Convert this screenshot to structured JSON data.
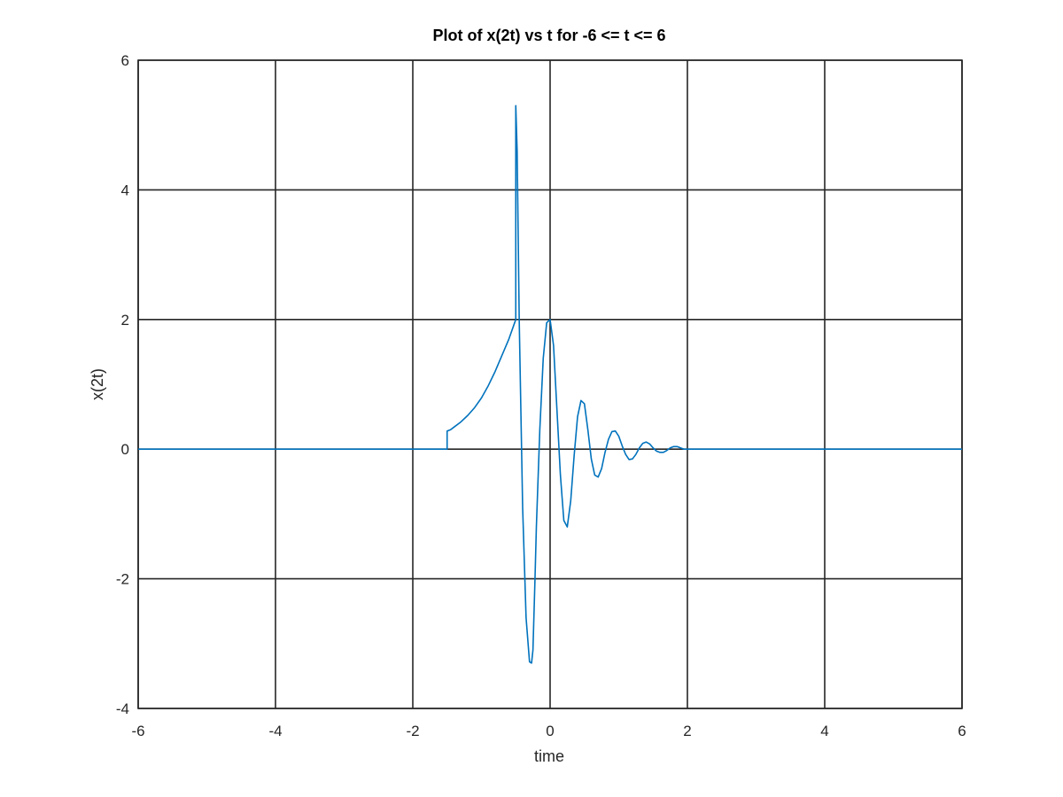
{
  "chart_data": {
    "type": "line",
    "title": "Plot of x(2t) vs t for -6 <= t <= 6",
    "xlabel": "time",
    "ylabel": "x(2t)",
    "xlim": [
      -6,
      6
    ],
    "ylim": [
      -4,
      6
    ],
    "xticks": [
      "-6",
      "-4",
      "-2",
      "0",
      "2",
      "4",
      "6"
    ],
    "yticks": [
      "-4",
      "-2",
      "0",
      "2",
      "4",
      "6"
    ],
    "grid": true,
    "legend": "none",
    "series": [
      {
        "color": "#0072bd",
        "x": [
          -6,
          -1.5,
          -1.5,
          -1.45,
          -1.4,
          -1.3,
          -1.2,
          -1.1,
          -1.0,
          -0.9,
          -0.8,
          -0.7,
          -0.6,
          -0.5,
          -0.5,
          -0.48,
          -0.45,
          -0.4,
          -0.35,
          -0.3,
          -0.27,
          -0.25,
          -0.22,
          -0.2,
          -0.15,
          -0.1,
          -0.05,
          0.0,
          0.05,
          0.1,
          0.15,
          0.2,
          0.25,
          0.3,
          0.35,
          0.4,
          0.45,
          0.5,
          0.55,
          0.6,
          0.65,
          0.7,
          0.75,
          0.8,
          0.85,
          0.9,
          0.95,
          1.0,
          1.05,
          1.1,
          1.15,
          1.2,
          1.25,
          1.3,
          1.35,
          1.4,
          1.45,
          1.5,
          1.55,
          1.6,
          1.65,
          1.7,
          1.75,
          1.8,
          1.85,
          1.9,
          1.95,
          2.0,
          6
        ],
        "y": [
          0,
          0,
          0.28,
          0.3,
          0.34,
          0.42,
          0.52,
          0.64,
          0.79,
          0.98,
          1.2,
          1.45,
          1.7,
          2.0,
          5.3,
          4.6,
          2.0,
          -0.9,
          -2.6,
          -3.28,
          -3.3,
          -3.1,
          -2.0,
          -1.2,
          0.3,
          1.4,
          1.95,
          2.0,
          1.6,
          0.6,
          -0.4,
          -1.1,
          -1.2,
          -0.8,
          -0.1,
          0.5,
          0.75,
          0.7,
          0.3,
          -0.15,
          -0.4,
          -0.43,
          -0.3,
          -0.05,
          0.15,
          0.27,
          0.28,
          0.2,
          0.05,
          -0.08,
          -0.16,
          -0.15,
          -0.08,
          0.02,
          0.09,
          0.11,
          0.08,
          0.02,
          -0.03,
          -0.05,
          -0.05,
          -0.02,
          0.02,
          0.04,
          0.04,
          0.02,
          0.0,
          0.0,
          0
        ]
      }
    ]
  }
}
